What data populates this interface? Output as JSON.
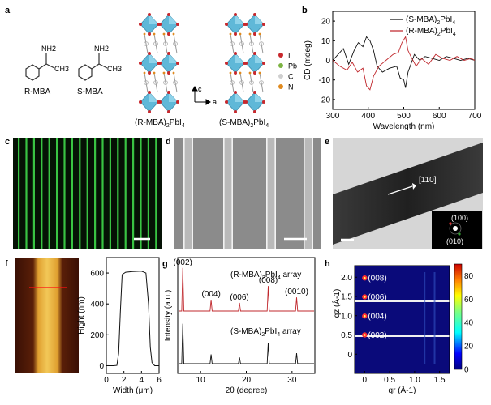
{
  "panels": {
    "a": {
      "label": "a",
      "molecules": [
        {
          "name": "R-MBA",
          "nh2": "NH2",
          "ch3": "CH3"
        },
        {
          "name": "S-MBA",
          "nh2": "NH2",
          "ch3": "CH3"
        }
      ],
      "structures": [
        {
          "name": "(R-MBA)2PbI4"
        },
        {
          "name": "(S-MBA)2PbI4"
        }
      ],
      "axes": {
        "c": "c",
        "a": "a"
      },
      "atom_legend": [
        {
          "symbol": "I",
          "color": "#c8282d"
        },
        {
          "symbol": "Pb",
          "color": "#7cb342"
        },
        {
          "symbol": "C",
          "color": "#cfcfcf"
        },
        {
          "symbol": "N",
          "color": "#e08a1e"
        }
      ]
    },
    "b": {
      "label": "b"
    },
    "c": {
      "label": "c"
    },
    "d": {
      "label": "d"
    },
    "e": {
      "label": "e",
      "direction": "[110]",
      "spots": [
        "(100)",
        "(010)"
      ]
    },
    "f": {
      "label": "f"
    },
    "g": {
      "label": "g"
    },
    "h": {
      "label": "h",
      "colorbar_ticks": [
        "80",
        "60",
        "40",
        "20",
        "0"
      ]
    }
  },
  "chart_data": [
    {
      "panel": "b",
      "type": "line",
      "xlabel": "Wavelength (nm)",
      "ylabel": "CD (mdeg)",
      "xlim": [
        300,
        700
      ],
      "ylim": [
        -25,
        25
      ],
      "xticks": [
        "300",
        "400",
        "500",
        "600",
        "700"
      ],
      "yticks": [
        "20",
        "10",
        "0",
        "-10",
        "-20"
      ],
      "legend": "top-right",
      "series": [
        {
          "name": "(S-MBA)2PbI4",
          "color": "#111111",
          "x": [
            300,
            315,
            330,
            345,
            360,
            372,
            385,
            395,
            405,
            415,
            425,
            440,
            460,
            480,
            490,
            500,
            505,
            512,
            520,
            530,
            545,
            560,
            580,
            600,
            620,
            640,
            660,
            680,
            700
          ],
          "y": [
            0,
            3,
            6,
            -2,
            5,
            9,
            7,
            12,
            10,
            5,
            -3,
            -6,
            -4,
            -3,
            -9,
            -10,
            -14,
            -6,
            -2,
            3,
            0,
            2,
            1,
            0,
            2,
            1,
            0,
            1,
            0
          ]
        },
        {
          "name": "(R-MBA)2PbI4",
          "color": "#c0282d",
          "x": [
            300,
            320,
            340,
            355,
            370,
            385,
            395,
            405,
            415,
            430,
            450,
            470,
            485,
            495,
            505,
            512,
            520,
            535,
            550,
            570,
            590,
            610,
            630,
            650,
            670,
            690,
            700
          ],
          "y": [
            0,
            -3,
            -5,
            -1,
            -6,
            -4,
            -13,
            -15,
            -8,
            -3,
            0,
            3,
            4,
            9,
            12,
            5,
            2,
            -3,
            1,
            -2,
            3,
            1,
            0,
            2,
            0,
            1,
            0
          ]
        }
      ]
    },
    {
      "panel": "f",
      "type": "line",
      "xlabel": "Width (μm)",
      "ylabel": "Hight (nm)",
      "xlim": [
        0,
        6
      ],
      "ylim": [
        -50,
        700
      ],
      "xticks": [
        "0",
        "2",
        "4",
        "6"
      ],
      "yticks": [
        "0",
        "200",
        "400",
        "600"
      ],
      "series": [
        {
          "name": "",
          "color": "#111111",
          "x": [
            0,
            0.8,
            1.2,
            1.4,
            1.6,
            1.8,
            2.2,
            3,
            4,
            4.5,
            4.8,
            5,
            5.2,
            5.5,
            6
          ],
          "y": [
            0,
            0,
            2,
            80,
            350,
            590,
            605,
            610,
            612,
            600,
            400,
            120,
            20,
            0,
            0
          ]
        }
      ]
    },
    {
      "panel": "g",
      "type": "line",
      "xlabel": "2θ (degree)",
      "ylabel": "Intensity (a.u.)",
      "xlim": [
        5,
        35
      ],
      "xticks": [
        "10",
        "20",
        "30"
      ],
      "series": [
        {
          "name": "(R-MBA)2PbI4 array",
          "color": "#c0282d",
          "peaks": [
            {
              "x": 6.1,
              "label": "(002)",
              "h": 0.95
            },
            {
              "x": 12.3,
              "label": "(004)",
              "h": 0.25
            },
            {
              "x": 18.5,
              "label": "(006)",
              "h": 0.18
            },
            {
              "x": 24.8,
              "label": "(008)",
              "h": 0.55
            },
            {
              "x": 31.0,
              "label": "(0010)",
              "h": 0.3
            }
          ]
        },
        {
          "name": "(S-MBA)2PbI4 array",
          "color": "#111111",
          "peaks": [
            {
              "x": 6.1,
              "h": 0.95
            },
            {
              "x": 12.3,
              "h": 0.22
            },
            {
              "x": 18.5,
              "h": 0.15
            },
            {
              "x": 24.8,
              "h": 0.5
            },
            {
              "x": 31.0,
              "h": 0.25
            }
          ]
        }
      ]
    },
    {
      "panel": "h",
      "type": "heatmap",
      "xlabel": "qr (Å-1)",
      "ylabel": "qz (Å-1)",
      "xlim": [
        -0.2,
        1.7
      ],
      "ylim": [
        -0.5,
        2.3
      ],
      "xticks": [
        "0",
        "0.5",
        "1.0",
        "1.5"
      ],
      "yticks": [
        "2.0",
        "1.5",
        "1.0",
        "0.5",
        "0"
      ],
      "spots": [
        {
          "label": "(008)",
          "qr": 0,
          "qz": 1.98
        },
        {
          "label": "(006)",
          "qr": 0,
          "qz": 1.49
        },
        {
          "label": "(004)",
          "qr": 0,
          "qz": 0.99
        },
        {
          "label": "(002)",
          "qr": 0,
          "qz": 0.5
        }
      ],
      "colorbar": {
        "min": 0,
        "max": 90
      }
    }
  ]
}
